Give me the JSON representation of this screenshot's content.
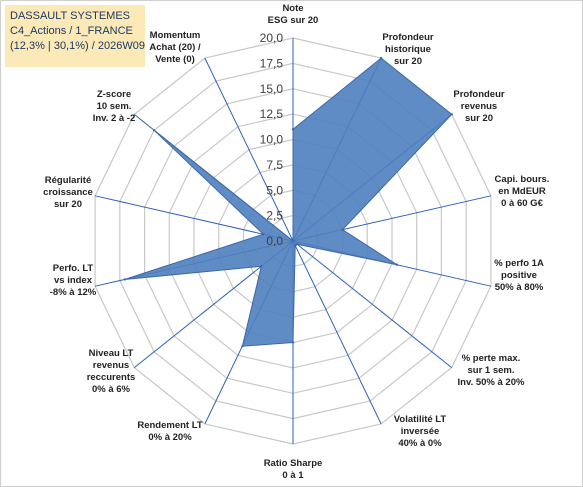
{
  "header": {
    "line1": "DASSAULT SYSTEMES",
    "line2": "C4_Actions / 1_FRANCE",
    "line3": "(12,3% | 30,1%) / 2026W09"
  },
  "colors": {
    "fill": "#4f7fbf",
    "stroke": "#3c68a8",
    "spoke": "#2e63b8",
    "ring": "#c8c8c8",
    "title_bg": "#fbe9b7",
    "title_text": "#1f3864"
  },
  "chart_data": {
    "type": "radar",
    "r_range": [
      0,
      20
    ],
    "r_ticks": [
      "0,0",
      "2,5",
      "5,0",
      "7,5",
      "10,0",
      "12,5",
      "15,0",
      "17,5",
      "20,0"
    ],
    "axes": [
      [
        "Note",
        "ESG sur 20"
      ],
      [
        "Profondeur",
        "historique",
        "sur 20"
      ],
      [
        "Profondeur",
        "revenus",
        "sur 20"
      ],
      [
        "Capi. bours.",
        "en MdEUR",
        "0 à 60 G€"
      ],
      [
        "% perfo 1A",
        "positive",
        "50% à 80%"
      ],
      [
        "% perte max.",
        "sur 1 sem.",
        "Inv. 50% à 20%"
      ],
      [
        "Volatilité LT",
        "inversée",
        "40% à 0%"
      ],
      [
        "Ratio Sharpe",
        "0 à 1"
      ],
      [
        "Rendement LT",
        "0% à 20%"
      ],
      [
        "Niveau LT",
        "revenus",
        "reccurents",
        "0% à 6%"
      ],
      [
        "Perfo. LT",
        "vs index",
        "-8% à 12%"
      ],
      [
        "Régularité",
        "croissance",
        "sur 20"
      ],
      [
        "Z-score",
        "10 sem.",
        "Inv. 2 à -2"
      ],
      [
        "Momentum",
        "Achat (20) /",
        "Vente (0)"
      ]
    ],
    "values": [
      11,
      20,
      20,
      5,
      10.5,
      0.5,
      0.5,
      10,
      11.5,
      4,
      17,
      3,
      17.5,
      0
    ]
  }
}
